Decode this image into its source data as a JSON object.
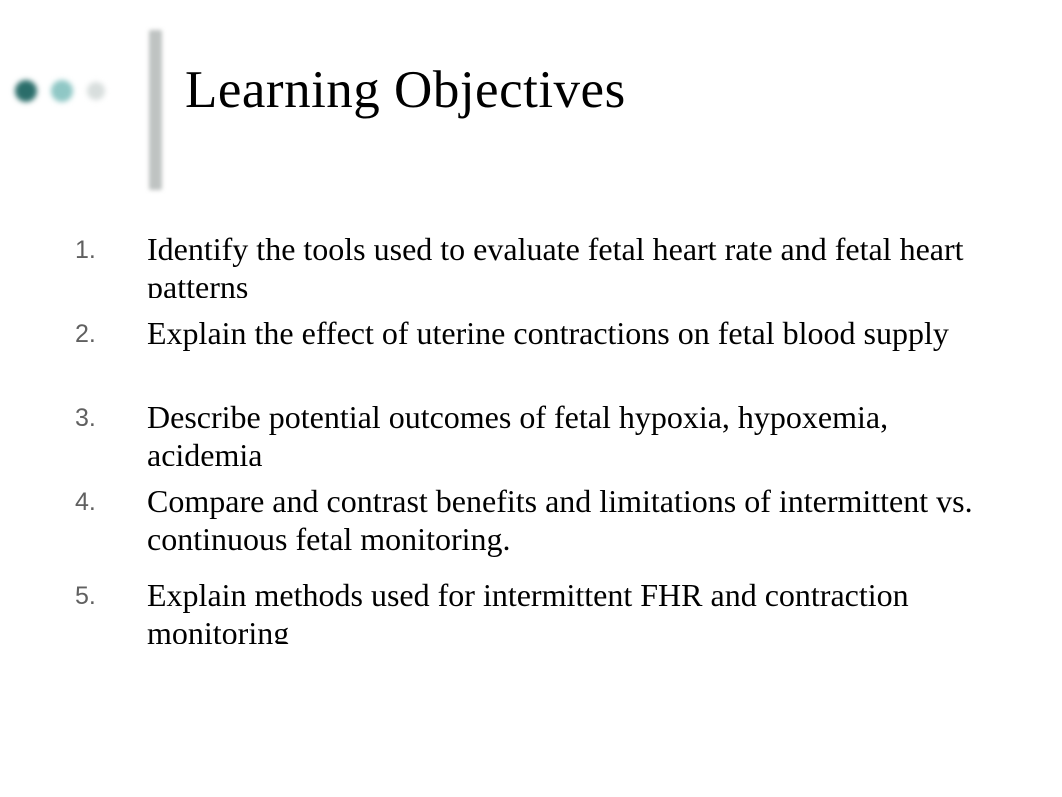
{
  "title": "Learning Objectives",
  "title_fontsize": 53,
  "title_color": "#000000",
  "number_color": "#606060",
  "number_fontsize": 25,
  "text_fontsize": 32,
  "text_color": "#000000",
  "background_color": "#ffffff",
  "vbar_color": "#bfc3c2",
  "dots": {
    "dot1_color": "#2a6d6a",
    "dot2_color": "#8fc7c5",
    "dot3_color": "#d8dedd"
  },
  "items": [
    {
      "n": "1.",
      "text": "Identify the tools used to evaluate fetal heart rate and fetal heart patterns"
    },
    {
      "n": "2.",
      "text": "Explain the effect of uterine contractions on fetal blood supply"
    },
    {
      "n": "3.",
      "text": "Describe potential outcomes of fetal hypoxia, hypoxemia, acidemia"
    },
    {
      "n": "4.",
      "text": "Compare and contrast benefits and limitations of intermittent vs. continuous fetal monitoring."
    },
    {
      "n": "5.",
      "text": "Explain methods used for intermittent FHR and contraction monitoring"
    }
  ]
}
